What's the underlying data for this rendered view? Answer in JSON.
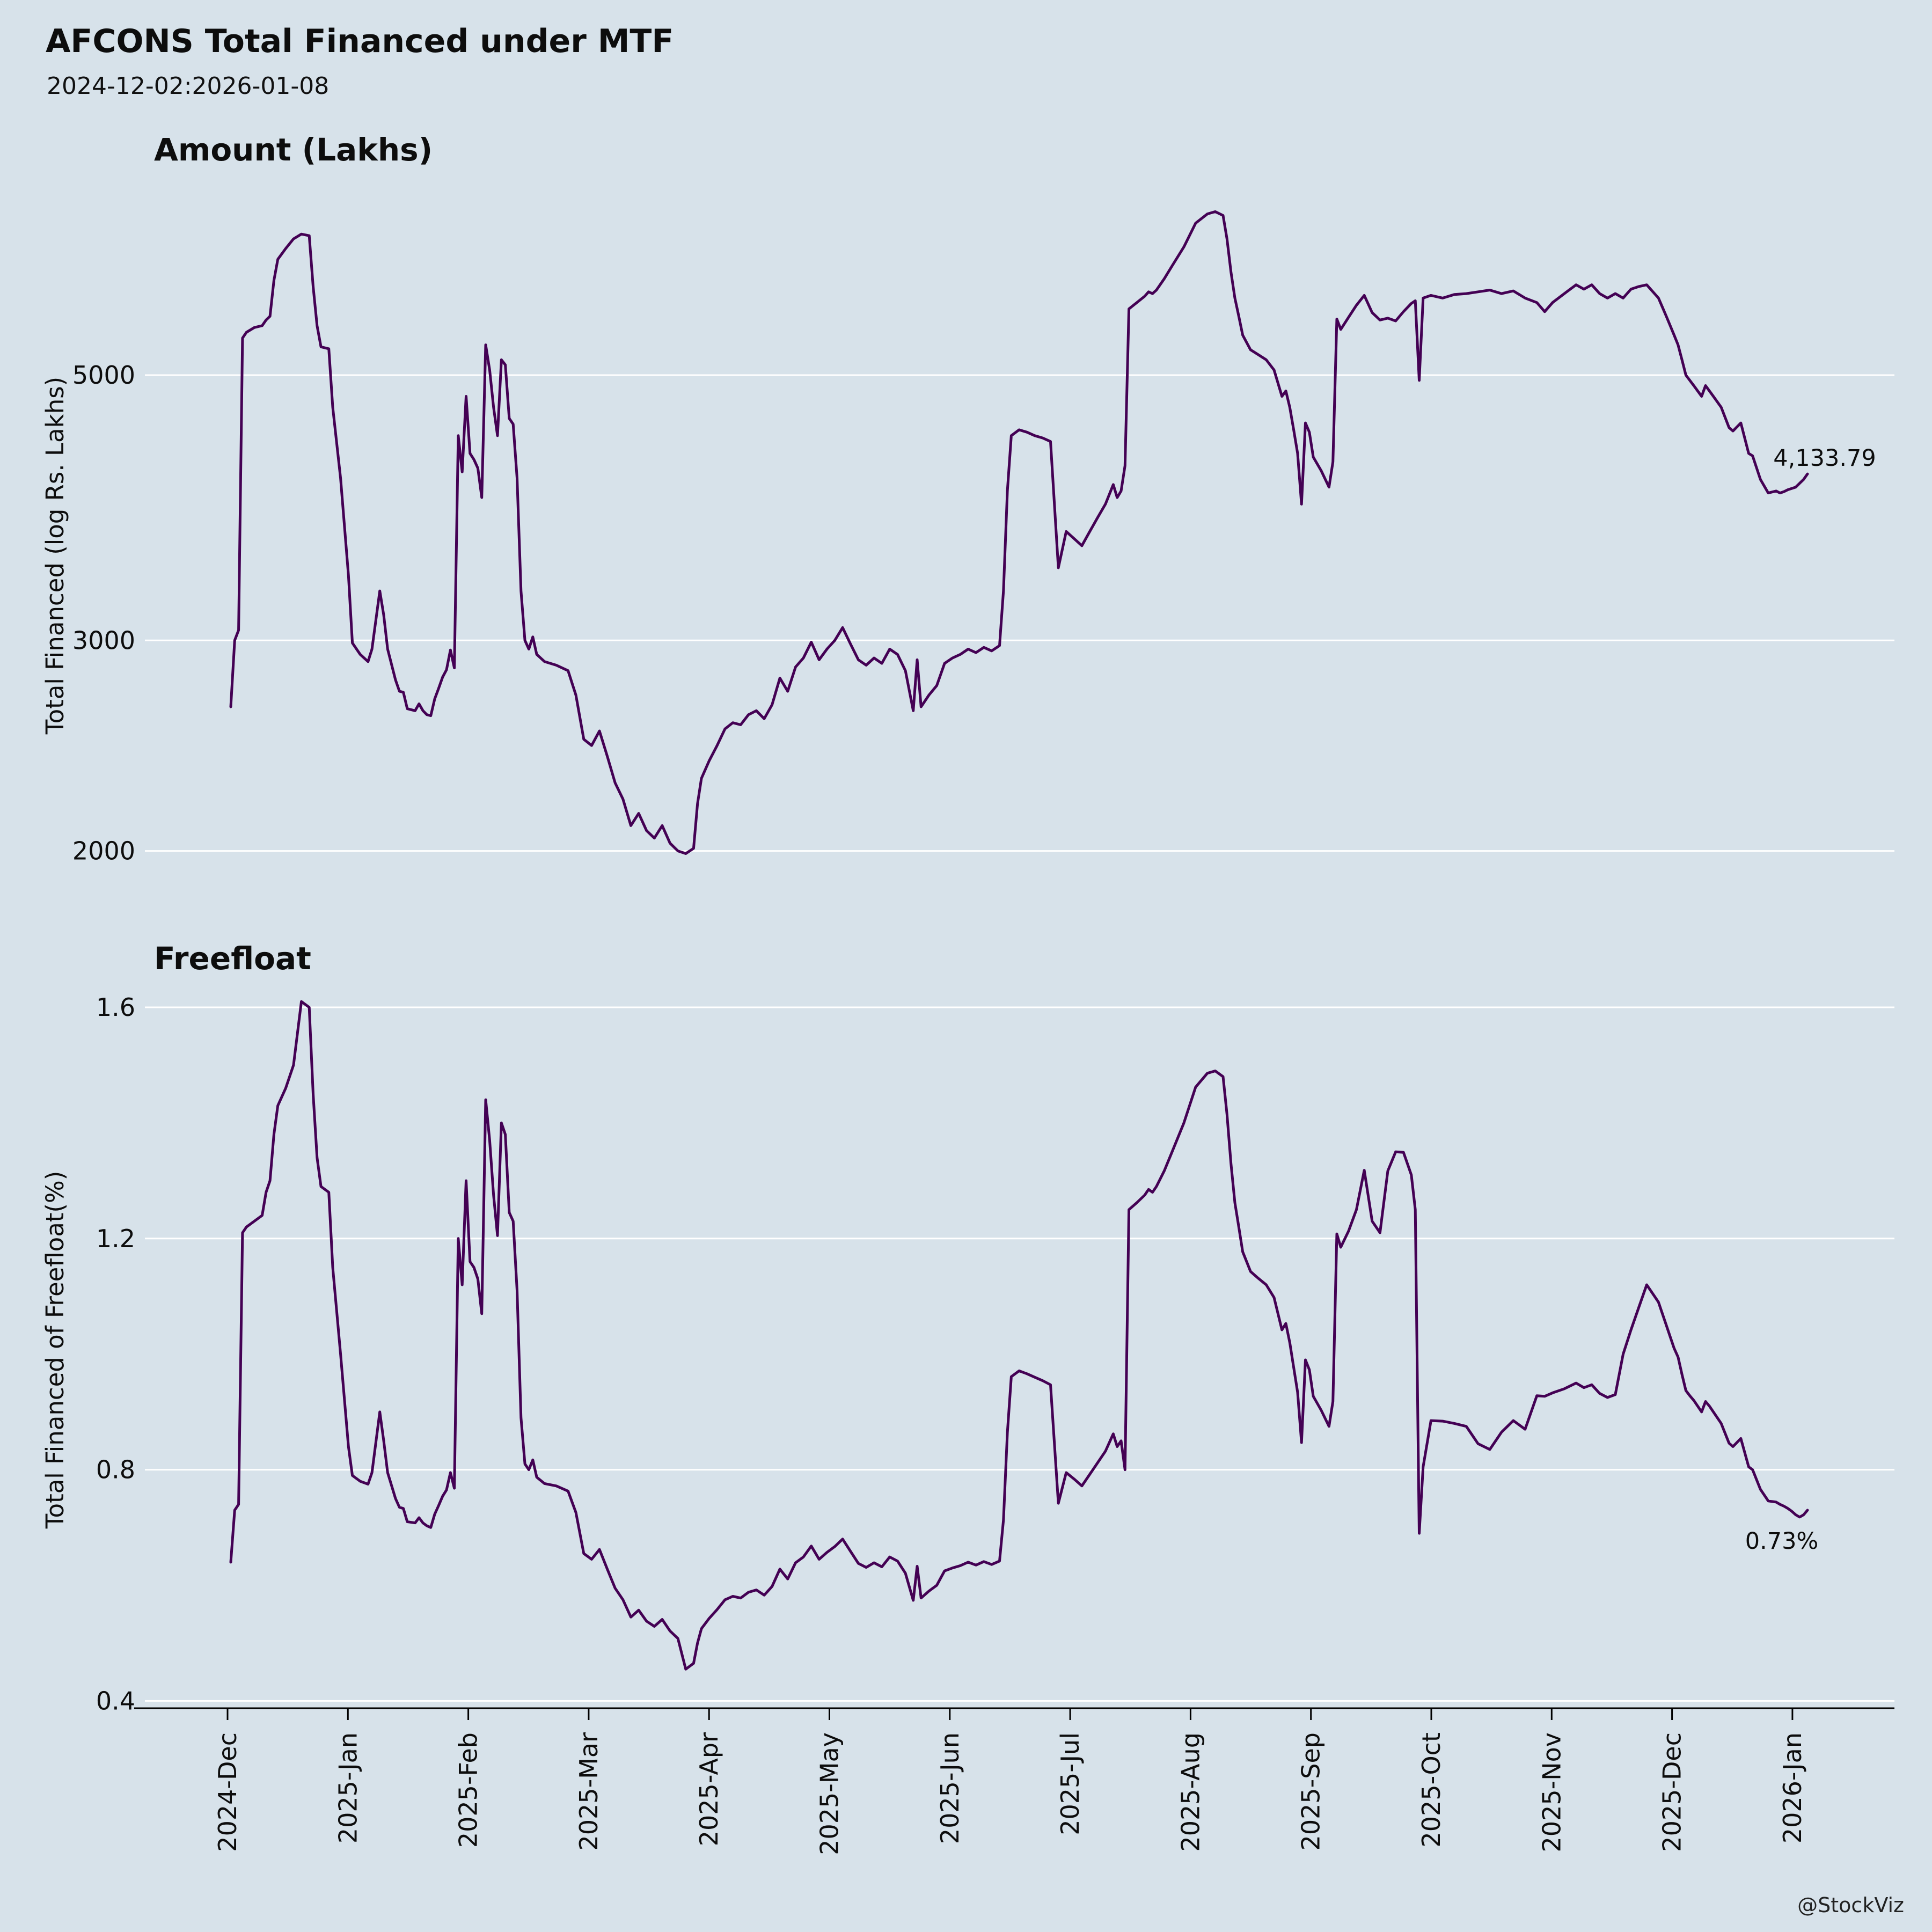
{
  "title": "AFCONS Total Financed under MTF",
  "subtitle": "2024-12-02:2026-01-08",
  "watermark": "@StockViz",
  "colors": {
    "background": "#d7e2ea",
    "line": "#440154",
    "grid": "#ffffff",
    "text": "#0d0d0d",
    "axis": "#000000"
  },
  "x_ticks": [
    "2024-Dec",
    "2025-Jan",
    "2025-Feb",
    "2025-Mar",
    "2025-Apr",
    "2025-May",
    "2025-Jun",
    "2025-Jul",
    "2025-Aug",
    "2025-Sep",
    "2025-Oct",
    "2025-Nov",
    "2025-Dec",
    "2026-Jan"
  ],
  "chart_data": [
    {
      "type": "line",
      "title": "Amount (Lakhs)",
      "ylabel": "Total Financed (log Rs. Lakhs)",
      "yscale": "log",
      "yticks": [
        5000,
        3000,
        2000
      ],
      "ylim": [
        1780,
        7050
      ],
      "x_unit": "days since 2024-12-02",
      "x_range_days": [
        0,
        402
      ],
      "annotation": "4,133.79",
      "legend": "none",
      "grid": "horizontal",
      "x": [
        0,
        1,
        2,
        3,
        4,
        6,
        8,
        9,
        10,
        11,
        12,
        14,
        16,
        18,
        20,
        21,
        22,
        23,
        25,
        26,
        28,
        30,
        31,
        33,
        35,
        36,
        38,
        39,
        40,
        42,
        43,
        44,
        45,
        47,
        48,
        49,
        50,
        51,
        52,
        53,
        54,
        55,
        56,
        57,
        58,
        59,
        60,
        61,
        62,
        63,
        64,
        65,
        66,
        67,
        68,
        69,
        70,
        71,
        72,
        73,
        74,
        75,
        76,
        77,
        78,
        80,
        83,
        86,
        88,
        90,
        92,
        94,
        96,
        98,
        100,
        102,
        104,
        106,
        108,
        110,
        112,
        114,
        116,
        118,
        119,
        120,
        122,
        124,
        126,
        128,
        130,
        132,
        134,
        136,
        138,
        140,
        142,
        144,
        146,
        148,
        150,
        152,
        154,
        156,
        158,
        160,
        162,
        164,
        166,
        168,
        170,
        172,
        174,
        175,
        176,
        178,
        180,
        182,
        184,
        186,
        188,
        190,
        192,
        194,
        196,
        197,
        198,
        199,
        201,
        203,
        205,
        207,
        209,
        211,
        213,
        215,
        217,
        219,
        221,
        223,
        225,
        226,
        227,
        228,
        229,
        231,
        233,
        234,
        235,
        236,
        238,
        240,
        243,
        246,
        249,
        251,
        253,
        254,
        255,
        256,
        257,
        258,
        260,
        262,
        264,
        266,
        268,
        269,
        270,
        271,
        272,
        273,
        274,
        275,
        276,
        278,
        280,
        281,
        282,
        283,
        285,
        287,
        289,
        291,
        293,
        295,
        297,
        299,
        301,
        302,
        303,
        304,
        306,
        309,
        312,
        315,
        318,
        321,
        324,
        327,
        330,
        333,
        335,
        337,
        340,
        343,
        345,
        347,
        349,
        351,
        353,
        355,
        357,
        359,
        361,
        363,
        364,
        365,
        366,
        367,
        368,
        369,
        370,
        371,
        372,
        373,
        374,
        375,
        376,
        377,
        378,
        380,
        382,
        383,
        385,
        387,
        388,
        390,
        392,
        394,
        395,
        396,
        397,
        398,
        399,
        400,
        401,
        402
      ],
      "values": [
        2640,
        3000,
        3060,
        5370,
        5430,
        5480,
        5500,
        5560,
        5600,
        6000,
        6250,
        6380,
        6500,
        6560,
        6540,
        5930,
        5500,
        5280,
        5260,
        4700,
        4100,
        3400,
        2985,
        2920,
        2880,
        2950,
        3300,
        3150,
        2950,
        2780,
        2720,
        2715,
        2630,
        2620,
        2655,
        2620,
        2600,
        2595,
        2680,
        2735,
        2795,
        2835,
        2945,
        2845,
        4450,
        4150,
        4800,
        4300,
        4250,
        4180,
        3950,
        5300,
        5050,
        4700,
        4450,
        5150,
        5100,
        4600,
        4550,
        4100,
        3300,
        3000,
        2950,
        3020,
        2920,
        2880,
        2860,
        2830,
        2700,
        2480,
        2450,
        2520,
        2400,
        2280,
        2210,
        2100,
        2150,
        2080,
        2050,
        2100,
        2030,
        2000,
        1990,
        2010,
        2190,
        2300,
        2380,
        2450,
        2530,
        2560,
        2550,
        2600,
        2620,
        2580,
        2650,
        2790,
        2720,
        2850,
        2900,
        2990,
        2890,
        2950,
        3000,
        3075,
        2980,
        2890,
        2860,
        2900,
        2870,
        2950,
        2920,
        2830,
        2620,
        2890,
        2640,
        2700,
        2750,
        2870,
        2900,
        2920,
        2950,
        2930,
        2960,
        2940,
        2970,
        3300,
        4000,
        4450,
        4500,
        4480,
        4450,
        4430,
        4400,
        3450,
        3700,
        3650,
        3600,
        3700,
        3800,
        3900,
        4050,
        3950,
        4000,
        4200,
        5680,
        5750,
        5820,
        5870,
        5850,
        5890,
        6020,
        6170,
        6400,
        6700,
        6820,
        6850,
        6800,
        6500,
        6100,
        5800,
        5600,
        5400,
        5250,
        5200,
        5150,
        5050,
        4800,
        4850,
        4700,
        4500,
        4300,
        3900,
        4560,
        4480,
        4270,
        4160,
        4030,
        4230,
        5570,
        5460,
        5590,
        5720,
        5830,
        5640,
        5560,
        5580,
        5550,
        5650,
        5740,
        5770,
        4950,
        5800,
        5830,
        5800,
        5840,
        5850,
        5870,
        5890,
        5850,
        5880,
        5800,
        5750,
        5650,
        5750,
        5850,
        5950,
        5900,
        5950,
        5850,
        5800,
        5850,
        5800,
        5900,
        5930,
        5950,
        5850,
        5800,
        5700,
        5600,
        5500,
        5400,
        5300,
        5150,
        5000,
        4950,
        4900,
        4850,
        4800,
        4900,
        4850,
        4800,
        4700,
        4520,
        4490,
        4560,
        4300,
        4280,
        4090,
        3985,
        4000,
        3985,
        3995,
        4010,
        4020,
        4030,
        4060,
        4090,
        4133.79
      ]
    },
    {
      "type": "line",
      "title": "Freefloat",
      "ylabel": "Total Financed of Freefloat(%)",
      "yscale": "linear",
      "yticks": [
        1.6,
        1.2,
        0.8,
        0.4
      ],
      "ylim": [
        0.35,
        1.65
      ],
      "x_unit": "days since 2024-12-02",
      "x_range_days": [
        0,
        402
      ],
      "annotation": "0.73%",
      "legend": "none",
      "grid": "horizontal",
      "x": [
        0,
        1,
        2,
        3,
        4,
        6,
        8,
        9,
        10,
        11,
        12,
        14,
        16,
        18,
        20,
        21,
        22,
        23,
        25,
        26,
        28,
        30,
        31,
        33,
        35,
        36,
        38,
        39,
        40,
        42,
        43,
        44,
        45,
        47,
        48,
        49,
        50,
        51,
        52,
        53,
        54,
        55,
        56,
        57,
        58,
        59,
        60,
        61,
        62,
        63,
        64,
        65,
        66,
        67,
        68,
        69,
        70,
        71,
        72,
        73,
        74,
        75,
        76,
        77,
        78,
        80,
        83,
        86,
        88,
        90,
        92,
        94,
        96,
        98,
        100,
        102,
        104,
        106,
        108,
        110,
        112,
        114,
        116,
        118,
        119,
        120,
        122,
        124,
        126,
        128,
        130,
        132,
        134,
        136,
        138,
        140,
        142,
        144,
        146,
        148,
        150,
        152,
        154,
        156,
        158,
        160,
        162,
        164,
        166,
        168,
        170,
        172,
        174,
        175,
        176,
        178,
        180,
        182,
        184,
        186,
        188,
        190,
        192,
        194,
        196,
        197,
        198,
        199,
        201,
        203,
        205,
        207,
        209,
        211,
        213,
        215,
        217,
        219,
        221,
        223,
        225,
        226,
        227,
        228,
        229,
        231,
        233,
        234,
        235,
        236,
        238,
        240,
        243,
        246,
        249,
        251,
        253,
        254,
        255,
        256,
        257,
        258,
        260,
        262,
        264,
        266,
        268,
        269,
        270,
        271,
        272,
        273,
        274,
        275,
        276,
        278,
        280,
        281,
        282,
        283,
        285,
        287,
        289,
        291,
        293,
        295,
        297,
        299,
        301,
        302,
        303,
        304,
        306,
        309,
        312,
        315,
        318,
        321,
        324,
        327,
        330,
        333,
        335,
        337,
        340,
        343,
        345,
        347,
        349,
        351,
        353,
        355,
        357,
        359,
        361,
        363,
        364,
        365,
        366,
        367,
        368,
        369,
        370,
        371,
        372,
        373,
        374,
        375,
        376,
        377,
        378,
        380,
        382,
        383,
        385,
        387,
        388,
        390,
        392,
        394,
        395,
        396,
        397,
        398,
        399,
        400,
        401,
        402
      ],
      "values": [
        0.64,
        0.73,
        0.74,
        1.21,
        1.22,
        1.23,
        1.24,
        1.28,
        1.3,
        1.38,
        1.43,
        1.46,
        1.5,
        1.61,
        1.6,
        1.45,
        1.34,
        1.29,
        1.28,
        1.15,
        1.0,
        0.84,
        0.79,
        0.78,
        0.775,
        0.795,
        0.9,
        0.85,
        0.795,
        0.75,
        0.735,
        0.733,
        0.71,
        0.708,
        0.717,
        0.708,
        0.703,
        0.7,
        0.723,
        0.738,
        0.754,
        0.765,
        0.795,
        0.768,
        1.2,
        1.12,
        1.3,
        1.16,
        1.15,
        1.13,
        1.07,
        1.44,
        1.37,
        1.275,
        1.205,
        1.4,
        1.38,
        1.245,
        1.23,
        1.11,
        0.89,
        0.81,
        0.8,
        0.817,
        0.787,
        0.776,
        0.772,
        0.763,
        0.726,
        0.655,
        0.645,
        0.662,
        0.628,
        0.595,
        0.575,
        0.545,
        0.557,
        0.538,
        0.529,
        0.541,
        0.521,
        0.508,
        0.455,
        0.465,
        0.5,
        0.525,
        0.543,
        0.558,
        0.575,
        0.581,
        0.578,
        0.588,
        0.592,
        0.583,
        0.598,
        0.628,
        0.611,
        0.639,
        0.649,
        0.668,
        0.645,
        0.657,
        0.667,
        0.68,
        0.659,
        0.638,
        0.631,
        0.639,
        0.632,
        0.649,
        0.642,
        0.621,
        0.574,
        0.633,
        0.578,
        0.59,
        0.6,
        0.625,
        0.63,
        0.634,
        0.64,
        0.635,
        0.641,
        0.636,
        0.642,
        0.713,
        0.864,
        0.961,
        0.971,
        0.966,
        0.96,
        0.954,
        0.947,
        0.742,
        0.795,
        0.784,
        0.772,
        0.792,
        0.812,
        0.832,
        0.862,
        0.84,
        0.85,
        0.8,
        1.25,
        1.262,
        1.275,
        1.285,
        1.28,
        1.29,
        1.317,
        1.35,
        1.4,
        1.462,
        1.486,
        1.49,
        1.48,
        1.415,
        1.33,
        1.262,
        1.22,
        1.177,
        1.143,
        1.131,
        1.12,
        1.098,
        1.042,
        1.053,
        1.02,
        0.977,
        0.934,
        0.847,
        0.99,
        0.973,
        0.927,
        0.903,
        0.875,
        0.918,
        1.208,
        1.185,
        1.213,
        1.25,
        1.318,
        1.23,
        1.21,
        1.317,
        1.35,
        1.349,
        1.31,
        1.25,
        0.69,
        0.805,
        0.885,
        0.884,
        0.88,
        0.875,
        0.845,
        0.835,
        0.865,
        0.885,
        0.87,
        0.928,
        0.927,
        0.933,
        0.94,
        0.95,
        0.942,
        0.947,
        0.932,
        0.925,
        0.93,
        1.0,
        1.042,
        1.081,
        1.12,
        1.1,
        1.09,
        1.07,
        1.05,
        1.03,
        1.01,
        0.995,
        0.965,
        0.937,
        0.928,
        0.92,
        0.91,
        0.9,
        0.918,
        0.91,
        0.9,
        0.88,
        0.846,
        0.84,
        0.854,
        0.805,
        0.8,
        0.766,
        0.746,
        0.744,
        0.74,
        0.737,
        0.733,
        0.728,
        0.722,
        0.718,
        0.722,
        0.73
      ]
    }
  ]
}
